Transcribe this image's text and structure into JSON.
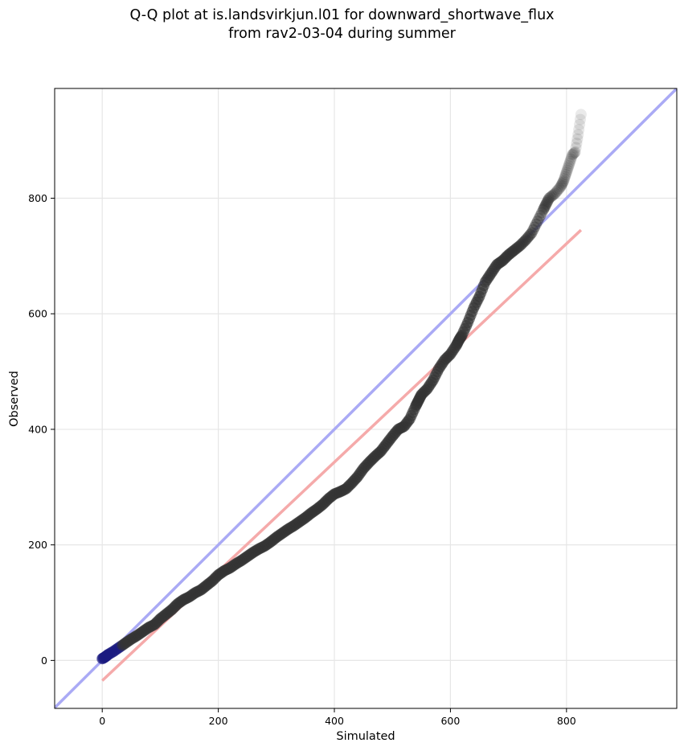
{
  "chart_data": {
    "type": "scatter",
    "title_line1": "Q-Q plot at is.landsvirkjun.l01 for downward_shortwave_flux",
    "title_line2": "from rav2-03-04 during summer",
    "xlabel": "Simulated",
    "ylabel": "Observed",
    "xlim": [
      -82,
      990
    ],
    "ylim": [
      -83,
      990
    ],
    "xticks": [
      0,
      200,
      400,
      600,
      800
    ],
    "yticks": [
      0,
      200,
      400,
      600,
      800
    ],
    "grid": true,
    "colors": {
      "points": "#333333",
      "identity_line": "#aaaaf5",
      "fit_line": "#f5aaaa",
      "start_marker": "#1a1a80"
    },
    "reference_lines": [
      {
        "role": "identity",
        "x": [
          -82,
          990
        ],
        "y": [
          -82,
          990
        ]
      },
      {
        "role": "fit",
        "x": [
          0,
          825
        ],
        "y": [
          -35,
          745
        ]
      }
    ],
    "quantiles": {
      "x": [
        0,
        5,
        10,
        20,
        30,
        40,
        50,
        60,
        70,
        80,
        90,
        100,
        110,
        120,
        130,
        140,
        150,
        160,
        170,
        180,
        190,
        200,
        210,
        220,
        230,
        240,
        250,
        260,
        270,
        280,
        290,
        300,
        310,
        320,
        330,
        340,
        350,
        360,
        370,
        380,
        390,
        400,
        410,
        420,
        430,
        440,
        450,
        460,
        470,
        480,
        490,
        500,
        510,
        520,
        530,
        540,
        545,
        550,
        560,
        570,
        580,
        590,
        600,
        610,
        615,
        620,
        630,
        640,
        650,
        660,
        670,
        680,
        690,
        700,
        710,
        720,
        730,
        740,
        750,
        760,
        765,
        770,
        780,
        790,
        795,
        800,
        805,
        810,
        815,
        820,
        825
      ],
      "y": [
        3,
        6,
        10,
        16,
        23,
        30,
        37,
        43,
        50,
        57,
        62,
        72,
        80,
        88,
        98,
        105,
        110,
        117,
        122,
        130,
        138,
        148,
        155,
        160,
        167,
        173,
        180,
        187,
        193,
        198,
        205,
        213,
        220,
        227,
        233,
        240,
        247,
        255,
        262,
        270,
        280,
        288,
        292,
        297,
        307,
        318,
        332,
        343,
        353,
        362,
        375,
        388,
        400,
        405,
        418,
        440,
        450,
        460,
        470,
        485,
        505,
        520,
        530,
        545,
        555,
        563,
        585,
        610,
        630,
        655,
        670,
        685,
        692,
        702,
        710,
        718,
        728,
        740,
        760,
        780,
        790,
        800,
        808,
        820,
        830,
        845,
        860,
        875,
        880,
        910,
        945
      ]
    }
  }
}
